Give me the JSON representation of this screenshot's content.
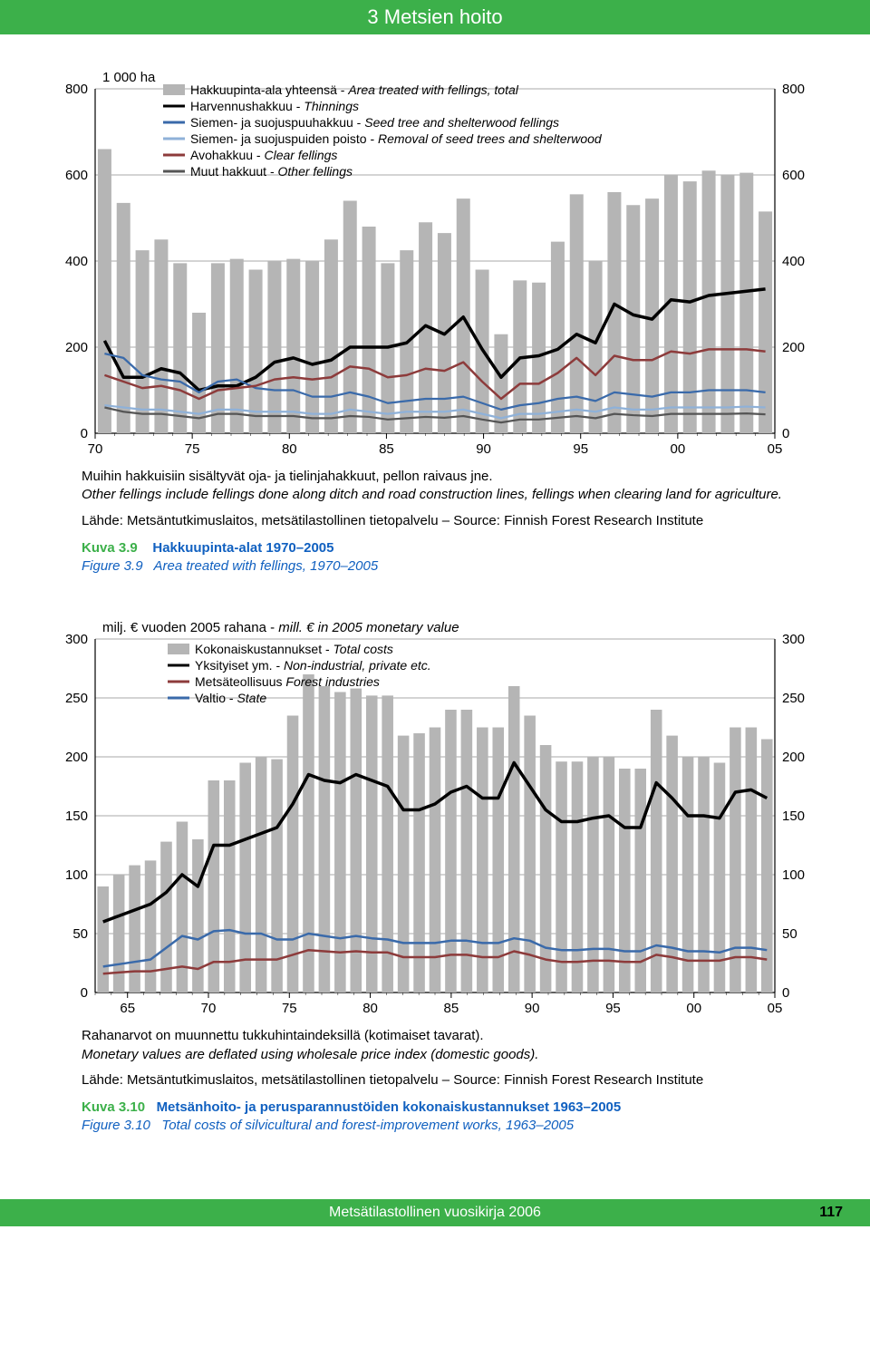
{
  "header": {
    "title": "3 Metsien hoito"
  },
  "chart1": {
    "type": "bar+line",
    "y_unit": "1 000 ha",
    "xlim": [
      1970,
      2005
    ],
    "ylim": [
      0,
      800
    ],
    "ytick_step": 200,
    "xticks": [
      70,
      75,
      80,
      85,
      90,
      95,
      0,
      5
    ],
    "xtick_labels": [
      "70",
      "75",
      "80",
      "85",
      "90",
      "95",
      "00",
      "05"
    ],
    "bar_color": "#b5b5b5",
    "plot_bg": "#ffffff",
    "grid_color": "#555555",
    "axis_color": "#000000",
    "bars": [
      660,
      535,
      425,
      450,
      395,
      280,
      395,
      405,
      380,
      400,
      405,
      400,
      450,
      540,
      480,
      395,
      425,
      490,
      465,
      545,
      380,
      230,
      355,
      350,
      445,
      555,
      400,
      560,
      530,
      545,
      600,
      585,
      610,
      600,
      605,
      515
    ],
    "legend": [
      {
        "swatch": "#b5b5b5",
        "type": "box",
        "fi": "Hakkuupinta-ala yhteensä - ",
        "en": "Area treated with fellings, total"
      },
      {
        "swatch": "#000000",
        "type": "line",
        "fi": "Harvennushakkuu - ",
        "en": "Thinnings"
      },
      {
        "swatch": "#3a6aaa",
        "type": "line",
        "fi": "Siemen- ja suojuspuuhakkuu - ",
        "en": "Seed tree and shelterwood fellings"
      },
      {
        "swatch": "#8fb1d8",
        "type": "line",
        "fi": "Siemen- ja suojuspuiden poisto - ",
        "en": "Removal of seed trees and shelterwood"
      },
      {
        "swatch": "#8d3b3b",
        "type": "line",
        "fi": "Avohakkuu - ",
        "en": "Clear fellings"
      },
      {
        "swatch": "#555555",
        "type": "line",
        "fi": "Muut hakkuut - ",
        "en": "Other fellings"
      }
    ],
    "series": {
      "thinnings": {
        "color": "#000000",
        "width": 3.5,
        "values": [
          215,
          130,
          130,
          150,
          140,
          100,
          110,
          110,
          130,
          165,
          175,
          160,
          170,
          200,
          200,
          200,
          210,
          250,
          230,
          270,
          195,
          130,
          175,
          180,
          195,
          230,
          210,
          300,
          275,
          265,
          310,
          305,
          320,
          325,
          330,
          335
        ]
      },
      "seedtree": {
        "color": "#3a6aaa",
        "width": 2.2,
        "values": [
          185,
          175,
          135,
          125,
          120,
          95,
          120,
          125,
          105,
          100,
          100,
          85,
          85,
          95,
          85,
          70,
          75,
          80,
          80,
          85,
          70,
          55,
          65,
          70,
          80,
          85,
          75,
          95,
          90,
          85,
          95,
          95,
          100,
          100,
          100,
          95
        ]
      },
      "removal": {
        "color": "#8fb1d8",
        "width": 2.2,
        "values": [
          65,
          60,
          55,
          55,
          50,
          45,
          55,
          55,
          50,
          50,
          50,
          45,
          45,
          55,
          50,
          45,
          50,
          50,
          50,
          55,
          45,
          35,
          45,
          45,
          50,
          55,
          50,
          60,
          55,
          55,
          60,
          60,
          60,
          60,
          62,
          60
        ]
      },
      "clear": {
        "color": "#8d3b3b",
        "width": 2.5,
        "values": [
          135,
          120,
          105,
          110,
          100,
          80,
          100,
          105,
          110,
          125,
          130,
          125,
          130,
          155,
          150,
          130,
          135,
          150,
          145,
          165,
          120,
          80,
          115,
          115,
          140,
          175,
          135,
          180,
          170,
          170,
          190,
          185,
          195,
          195,
          195,
          190
        ]
      },
      "other": {
        "color": "#555555",
        "width": 2.2,
        "values": [
          60,
          50,
          45,
          45,
          40,
          35,
          45,
          45,
          40,
          40,
          40,
          35,
          35,
          40,
          38,
          32,
          35,
          38,
          36,
          40,
          32,
          25,
          32,
          32,
          36,
          40,
          35,
          45,
          42,
          40,
          45,
          45,
          45,
          45,
          46,
          44
        ]
      }
    }
  },
  "caption1": {
    "note_fi": "Muihin hakkuisiin sisältyvät oja- ja tielinjahakkuut, pellon raivaus jne.",
    "note_en": "Other fellings include fellings done along ditch and road construction lines, fellings when clearing land for agriculture.",
    "source": "Lähde: Metsäntutkimuslaitos, metsätilastollinen tietopalvelu – Source: Finnish Forest Research Institute",
    "kuva": "Kuva 3.9",
    "fi_title": "Hakkuupinta-alat 1970–2005",
    "fig": "Figure 3.9",
    "en_title": "Area treated with fellings, 1970–2005"
  },
  "chart2": {
    "type": "bar+line",
    "y_unit": "milj. € vuoden 2005 rahana - mill. € in 2005 monetary value",
    "xlim": [
      1963,
      2005
    ],
    "ylim": [
      0,
      300
    ],
    "ytick_step": 50,
    "xticks": [
      65,
      70,
      75,
      80,
      85,
      90,
      95,
      0,
      5
    ],
    "xtick_labels": [
      "65",
      "70",
      "75",
      "80",
      "85",
      "90",
      "95",
      "00",
      "05"
    ],
    "bar_color": "#b5b5b5",
    "plot_bg": "#ffffff",
    "grid_color": "#555555",
    "axis_color": "#000000",
    "bars": [
      90,
      100,
      108,
      112,
      128,
      145,
      130,
      180,
      180,
      195,
      200,
      198,
      235,
      270,
      260,
      255,
      258,
      252,
      252,
      218,
      220,
      225,
      240,
      240,
      225,
      225,
      260,
      235,
      210,
      196,
      196,
      200,
      200,
      190,
      190,
      240,
      218,
      200,
      200,
      195,
      225,
      225,
      215
    ],
    "legend": [
      {
        "swatch": "#b5b5b5",
        "type": "box",
        "fi": "Kokonaiskustannukset - ",
        "en": "Total costs"
      },
      {
        "swatch": "#000000",
        "type": "line",
        "fi": "Yksityiset ym. - ",
        "en": "Non-industrial, private etc."
      },
      {
        "swatch": "#8d3b3b",
        "type": "line",
        "fi": "Metsäteollisuus",
        "en": "Forest industries"
      },
      {
        "swatch": "#3a6aaa",
        "type": "line",
        "fi": "Valtio - ",
        "en": "State"
      }
    ],
    "series": {
      "private": {
        "color": "#000000",
        "width": 3.5,
        "values": [
          60,
          65,
          70,
          75,
          85,
          100,
          90,
          125,
          125,
          130,
          135,
          140,
          160,
          185,
          180,
          178,
          185,
          180,
          175,
          155,
          155,
          160,
          170,
          175,
          165,
          165,
          195,
          175,
          155,
          145,
          145,
          148,
          150,
          140,
          140,
          178,
          165,
          150,
          150,
          148,
          170,
          172,
          165
        ]
      },
      "forest": {
        "color": "#8d3b3b",
        "width": 2.5,
        "values": [
          16,
          17,
          18,
          18,
          20,
          22,
          20,
          26,
          26,
          28,
          28,
          28,
          32,
          36,
          35,
          34,
          35,
          34,
          34,
          30,
          30,
          30,
          32,
          32,
          30,
          30,
          35,
          32,
          28,
          26,
          26,
          27,
          27,
          26,
          26,
          32,
          30,
          27,
          27,
          27,
          30,
          30,
          28
        ]
      },
      "state": {
        "color": "#3a6aaa",
        "width": 2.5,
        "values": [
          22,
          24,
          26,
          28,
          38,
          48,
          45,
          52,
          53,
          50,
          50,
          45,
          45,
          50,
          48,
          46,
          48,
          46,
          45,
          42,
          42,
          42,
          44,
          44,
          42,
          42,
          46,
          44,
          38,
          36,
          36,
          37,
          37,
          35,
          35,
          40,
          38,
          35,
          35,
          34,
          38,
          38,
          36
        ]
      }
    }
  },
  "caption2": {
    "note_fi": "Rahanarvot on muunnettu tukkuhintaindeksillä (kotimaiset tavarat).",
    "note_en": "Monetary values are deflated using wholesale price index (domestic goods).",
    "source": "Lähde: Metsäntutkimuslaitos, metsätilastollinen tietopalvelu – Source: Finnish Forest Research Institute",
    "kuva": "Kuva 3.10",
    "fi_title": "Metsänhoito- ja perusparannustöiden kokonaiskustannukset 1963–2005",
    "fig": "Figure 3.10",
    "en_title": "Total costs of silvicultural and forest-improvement works, 1963–2005"
  },
  "footer": {
    "text": "Metsätilastollinen vuosikirja 2006",
    "page": "117"
  }
}
